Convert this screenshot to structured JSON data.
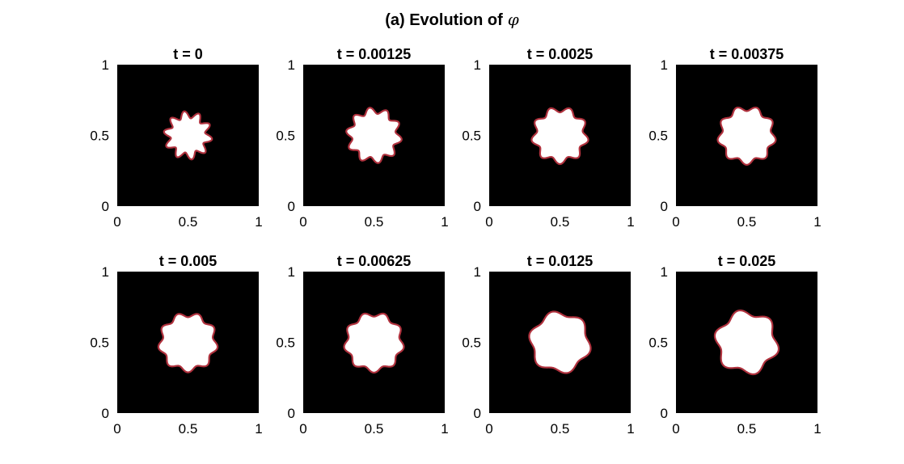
{
  "figure": {
    "title_prefix": "(a) Evolution of",
    "title_symbol": "φ"
  },
  "chart_data": [
    {
      "type": "heatmap",
      "title": "t = 0",
      "xlim": [
        0,
        1
      ],
      "ylim": [
        0,
        1
      ],
      "x_ticks": [
        "0",
        "0.5",
        "1"
      ],
      "y_ticks": [
        "0",
        "0.5",
        "1"
      ],
      "shape": {
        "center": [
          0.5,
          0.5
        ],
        "mean_radius": 0.147,
        "amplitude": 0.025,
        "lobes": 10
      },
      "colors": {
        "background": "#000000",
        "interior": "#ffffff",
        "interface": "#b0323e"
      }
    },
    {
      "type": "heatmap",
      "title": "t = 0.00125",
      "xlim": [
        0,
        1
      ],
      "ylim": [
        0,
        1
      ],
      "x_ticks": [
        "0",
        "0.5",
        "1"
      ],
      "y_ticks": [
        "0",
        "0.5",
        "1"
      ],
      "shape": {
        "center": [
          0.5,
          0.5
        ],
        "mean_radius": 0.176,
        "amplitude": 0.022,
        "lobes": 10
      },
      "colors": {
        "background": "#000000",
        "interior": "#ffffff",
        "interface": "#b0323e"
      }
    },
    {
      "type": "heatmap",
      "title": "t = 0.0025",
      "xlim": [
        0,
        1
      ],
      "ylim": [
        0,
        1
      ],
      "x_ticks": [
        "0",
        "0.5",
        "1"
      ],
      "y_ticks": [
        "0",
        "0.5",
        "1"
      ],
      "shape": {
        "center": [
          0.5,
          0.5
        ],
        "mean_radius": 0.183,
        "amplitude": 0.02,
        "lobes": 9
      },
      "colors": {
        "background": "#000000",
        "interior": "#ffffff",
        "interface": "#b0323e"
      }
    },
    {
      "type": "heatmap",
      "title": "t = 0.00375",
      "xlim": [
        0,
        1
      ],
      "ylim": [
        0,
        1
      ],
      "x_ticks": [
        "0",
        "0.5",
        "1"
      ],
      "y_ticks": [
        "0",
        "0.5",
        "1"
      ],
      "shape": {
        "center": [
          0.5,
          0.5
        ],
        "mean_radius": 0.19,
        "amplitude": 0.018,
        "lobes": 9
      },
      "colors": {
        "background": "#000000",
        "interior": "#ffffff",
        "interface": "#b0323e"
      }
    },
    {
      "type": "heatmap",
      "title": "t = 0.005",
      "xlim": [
        0,
        1
      ],
      "ylim": [
        0,
        1
      ],
      "x_ticks": [
        "0",
        "0.5",
        "1"
      ],
      "y_ticks": [
        "0",
        "0.5",
        "1"
      ],
      "shape": {
        "center": [
          0.5,
          0.5
        ],
        "mean_radius": 0.195,
        "amplitude": 0.017,
        "lobes": 9
      },
      "colors": {
        "background": "#000000",
        "interior": "#ffffff",
        "interface": "#b0323e"
      }
    },
    {
      "type": "heatmap",
      "title": "t = 0.00625",
      "xlim": [
        0,
        1
      ],
      "ylim": [
        0,
        1
      ],
      "x_ticks": [
        "0",
        "0.5",
        "1"
      ],
      "y_ticks": [
        "0",
        "0.5",
        "1"
      ],
      "shape": {
        "center": [
          0.5,
          0.5
        ],
        "mean_radius": 0.198,
        "amplitude": 0.016,
        "lobes": 9
      },
      "colors": {
        "background": "#000000",
        "interior": "#ffffff",
        "interface": "#b0323e"
      }
    },
    {
      "type": "heatmap",
      "title": "t = 0.0125",
      "xlim": [
        0,
        1
      ],
      "ylim": [
        0,
        1
      ],
      "x_ticks": [
        "0",
        "0.5",
        "1"
      ],
      "y_ticks": [
        "0",
        "0.5",
        "1"
      ],
      "shape": {
        "center": [
          0.5,
          0.5
        ],
        "mean_radius": 0.205,
        "amplitude": 0.018,
        "lobes": 6
      },
      "colors": {
        "background": "#000000",
        "interior": "#ffffff",
        "interface": "#b0323e"
      }
    },
    {
      "type": "heatmap",
      "title": "t = 0.025",
      "xlim": [
        0,
        1
      ],
      "ylim": [
        0,
        1
      ],
      "x_ticks": [
        "0",
        "0.5",
        "1"
      ],
      "y_ticks": [
        "0",
        "0.5",
        "1"
      ],
      "shape": {
        "center": [
          0.5,
          0.5
        ],
        "mean_radius": 0.21,
        "amplitude": 0.022,
        "lobes": 6
      },
      "colors": {
        "background": "#000000",
        "interior": "#ffffff",
        "interface": "#b0323e"
      }
    }
  ]
}
